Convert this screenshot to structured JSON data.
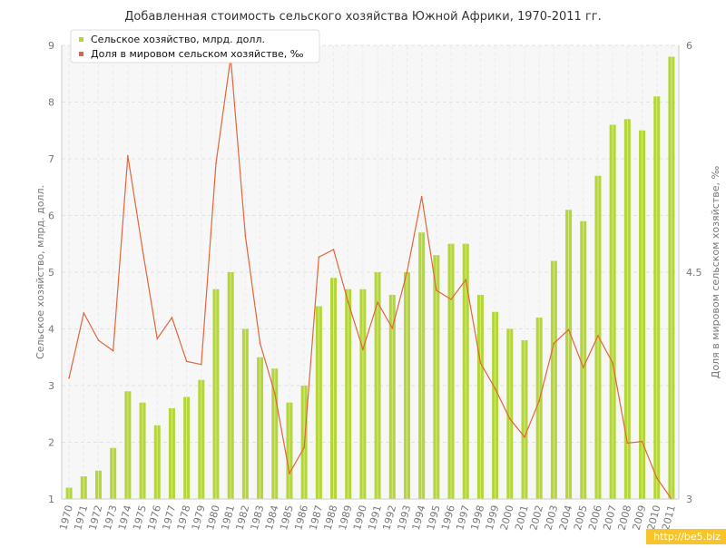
{
  "chart_data": {
    "type": "bar",
    "title": "Добавленная стоимость сельского хозяйства Южной Африки, 1970-2011 гг.",
    "ylabel": "Сельское хозяйство, млрд. долл.",
    "y2label": "Доля в мировом сельском хозяйстве, ‰",
    "ylim": [
      1,
      9
    ],
    "yticks": [
      1,
      2,
      3,
      4,
      5,
      6,
      7,
      8,
      9
    ],
    "y2lim": [
      3,
      6
    ],
    "y2ticks": [
      3,
      4.5,
      6
    ],
    "grid": true,
    "legend_position": "top-left",
    "categories": [
      "1970",
      "1971",
      "1972",
      "1973",
      "1974",
      "1975",
      "1976",
      "1977",
      "1978",
      "1979",
      "1980",
      "1981",
      "1982",
      "1983",
      "1984",
      "1985",
      "1986",
      "1987",
      "1988",
      "1989",
      "1990",
      "1991",
      "1992",
      "1993",
      "1994",
      "1995",
      "1996",
      "1997",
      "1998",
      "1999",
      "2000",
      "2001",
      "2002",
      "2003",
      "2004",
      "2005",
      "2006",
      "2007",
      "2008",
      "2009",
      "2010",
      "2011"
    ],
    "series": [
      {
        "name": "Сельское хозяйство, млрд. долл.",
        "type": "bar",
        "axis": "left",
        "color": "#b5d63a",
        "values": [
          1.2,
          1.4,
          1.5,
          1.9,
          2.9,
          2.7,
          2.3,
          2.6,
          2.8,
          3.1,
          4.7,
          5.0,
          4.0,
          3.5,
          3.3,
          2.7,
          3.0,
          4.4,
          4.9,
          4.7,
          4.7,
          5.0,
          4.6,
          5.0,
          5.7,
          5.3,
          5.5,
          5.5,
          4.6,
          4.3,
          4.0,
          3.8,
          4.2,
          5.2,
          6.1,
          5.9,
          6.7,
          7.6,
          7.7,
          7.5,
          8.1,
          8.8
        ]
      },
      {
        "name": "Доля в мировом сельском хозяйстве, ‰",
        "type": "line",
        "axis": "right",
        "color": "#e0663a",
        "values": [
          3.8,
          4.23,
          4.05,
          3.98,
          5.27,
          4.65,
          4.06,
          4.2,
          3.91,
          3.89,
          5.22,
          5.92,
          4.74,
          4.03,
          3.7,
          3.17,
          3.34,
          4.6,
          4.65,
          4.3,
          3.99,
          4.3,
          4.13,
          4.5,
          5.0,
          4.38,
          4.32,
          4.45,
          3.9,
          3.73,
          3.53,
          3.41,
          3.65,
          4.03,
          4.12,
          3.87,
          4.08,
          3.9,
          3.37,
          3.38,
          3.14,
          3.0
        ]
      }
    ]
  },
  "watermark": "http://be5.biz"
}
